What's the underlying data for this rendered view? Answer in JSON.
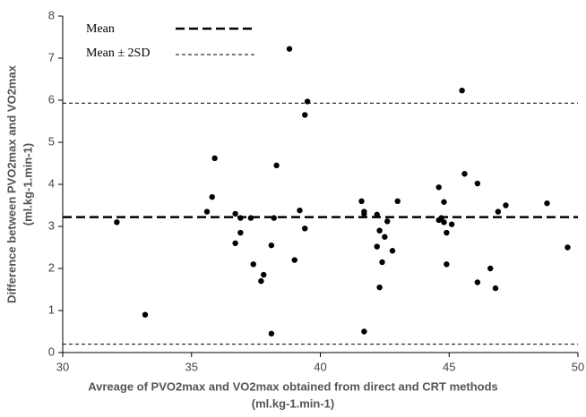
{
  "chart_data": {
    "type": "scatter",
    "x_label": [
      "Avreage of  PVO2max and VO2max obtained from direct and CRT methods",
      "(ml.kg-1.min-1)"
    ],
    "y_label": [
      "Difference between PVO2max and VO2max",
      "(ml.kg-1.min-1)"
    ],
    "xlim": [
      30,
      50
    ],
    "xticks": [
      30,
      35,
      40,
      45,
      50
    ],
    "ylim": [
      0,
      8
    ],
    "yticks": [
      0,
      1,
      2,
      3,
      4,
      5,
      6,
      7,
      8
    ],
    "color": "#000000",
    "mean": 3.22,
    "upper_limit": 5.93,
    "lower_limit": 0.2,
    "legend": [
      "Mean",
      "Mean ± 2SD"
    ],
    "x": [
      32.1,
      33.2,
      35.6,
      35.8,
      35.9,
      36.7,
      36.9,
      36.7,
      36.9,
      37.3,
      37.4,
      37.8,
      37.7,
      38.1,
      38.2,
      38.1,
      38.3,
      38.8,
      39.0,
      39.2,
      39.4,
      39.5,
      39.4,
      41.6,
      41.7,
      41.7,
      41.7,
      42.2,
      42.2,
      42.3,
      42.3,
      42.5,
      42.4,
      42.6,
      42.8,
      43.0,
      44.6,
      44.7,
      44.6,
      44.8,
      44.8,
      44.9,
      44.9,
      45.1,
      45.5,
      45.6,
      46.1,
      46.1,
      46.6,
      46.9,
      46.8,
      47.2,
      48.8,
      49.6
    ],
    "values": [
      3.1,
      0.9,
      3.35,
      3.7,
      4.62,
      3.3,
      3.2,
      2.6,
      2.85,
      3.2,
      2.1,
      1.85,
      1.7,
      0.45,
      3.2,
      2.55,
      4.45,
      7.22,
      2.2,
      3.38,
      5.65,
      5.97,
      2.95,
      3.6,
      3.35,
      3.3,
      0.5,
      3.28,
      2.52,
      1.55,
      2.9,
      2.75,
      2.15,
      3.12,
      2.42,
      3.6,
      3.93,
      3.2,
      3.15,
      3.1,
      3.58,
      2.85,
      2.1,
      3.05,
      6.23,
      4.25,
      4.02,
      1.67,
      2.0,
      3.35,
      1.53,
      3.5,
      3.55,
      2.5
    ]
  }
}
